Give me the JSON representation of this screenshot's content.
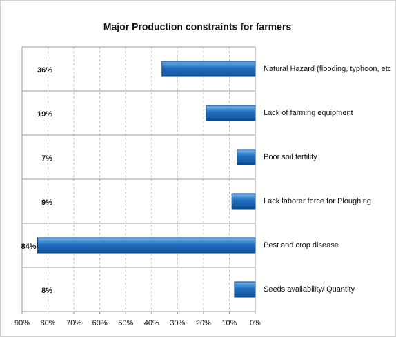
{
  "chart_data": {
    "type": "bar",
    "orientation": "horizontal",
    "title": "Major Production constraints for farmers",
    "categories": [
      "Natural Hazard (flooding, typhoon, etc",
      "Lack of farming equipment",
      "Poor  soil fertility",
      "Lack laborer force for Ploughing",
      "Pest and crop disease",
      "Seeds availability/ Quantity"
    ],
    "values": [
      36,
      19,
      7,
      9,
      84,
      8
    ],
    "value_labels": [
      "36%",
      "19%",
      "7%",
      "9%",
      "84%",
      "8%"
    ],
    "color": "#1f6fc1",
    "xlim": [
      0,
      90
    ],
    "x_reversed": true,
    "xticks": [
      {
        "value": 90,
        "label": "90%"
      },
      {
        "value": 80,
        "label": "80%"
      },
      {
        "value": 70,
        "label": "70%"
      },
      {
        "value": 60,
        "label": "60%"
      },
      {
        "value": 50,
        "label": "50%"
      },
      {
        "value": 40,
        "label": "40%"
      },
      {
        "value": 30,
        "label": "30%"
      },
      {
        "value": 20,
        "label": "20%"
      },
      {
        "value": 10,
        "label": "10%"
      },
      {
        "value": 0,
        "label": "0%"
      }
    ],
    "grid": true
  }
}
